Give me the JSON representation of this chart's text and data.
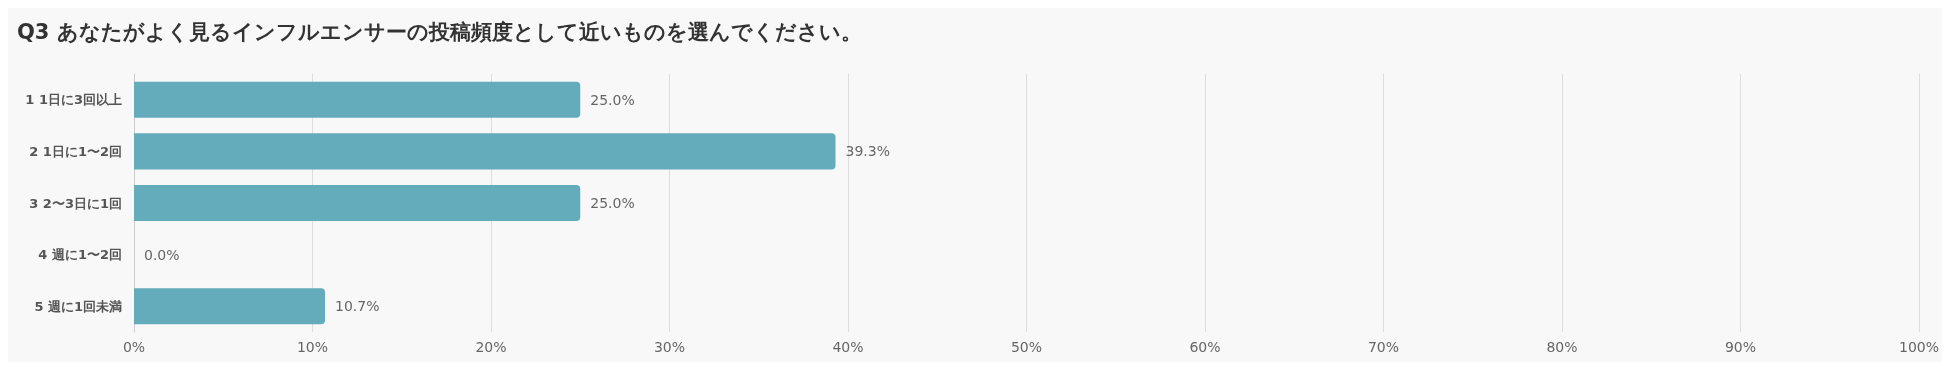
{
  "chart_data": {
    "type": "bar",
    "orientation": "horizontal",
    "title": "Q3 あなたがよく見るインフルエンサーの投稿頻度として近いものを選んでください。",
    "categories": [
      "1 1日に3回以上",
      "2 1日に1〜2回",
      "3 2〜3日に1回",
      "4 週に1〜2回",
      "5 週に1回未満"
    ],
    "values": [
      25.0,
      39.3,
      25.0,
      0.0,
      10.7
    ],
    "value_labels": [
      "25.0%",
      "39.3%",
      "25.0%",
      "0.0%",
      "10.7%"
    ],
    "color": "#64abbb",
    "xlim": [
      0,
      100
    ],
    "xticks": [
      {
        "value": 0,
        "label": "0%"
      },
      {
        "value": 10,
        "label": "10%"
      },
      {
        "value": 20,
        "label": "20%"
      },
      {
        "value": 30,
        "label": "30%"
      },
      {
        "value": 40,
        "label": "40%"
      },
      {
        "value": 50,
        "label": "50%"
      },
      {
        "value": 60,
        "label": "60%"
      },
      {
        "value": 70,
        "label": "70%"
      },
      {
        "value": 80,
        "label": "80%"
      },
      {
        "value": 90,
        "label": "90%"
      },
      {
        "value": 100,
        "label": "100%"
      }
    ],
    "grid": "x"
  }
}
